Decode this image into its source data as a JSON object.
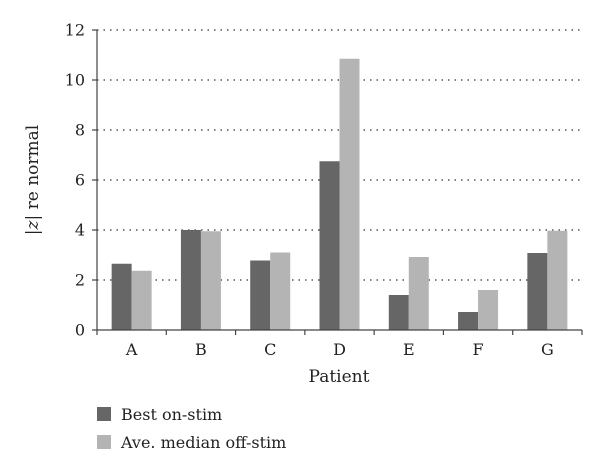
{
  "chart_data": {
    "type": "bar",
    "title": "",
    "xlabel": "Patient",
    "ylabel_prefix": "|",
    "ylabel_var": "z",
    "ylabel_suffix": "| re normal",
    "categories": [
      "A",
      "B",
      "C",
      "D",
      "E",
      "F",
      "G"
    ],
    "ylim": [
      0,
      12
    ],
    "yticks": [
      0,
      2,
      4,
      6,
      8,
      10,
      12
    ],
    "grid": true,
    "legend_position": "bottom-left",
    "series": [
      {
        "name": "Best on-stim",
        "color": "#666666",
        "values": [
          2.65,
          4.0,
          2.78,
          6.75,
          1.4,
          0.72,
          3.08
        ]
      },
      {
        "name": "Ave. median off-stim",
        "color": "#b4b4b4",
        "values": [
          2.37,
          3.95,
          3.1,
          10.85,
          2.92,
          1.6,
          3.97
        ]
      }
    ]
  }
}
